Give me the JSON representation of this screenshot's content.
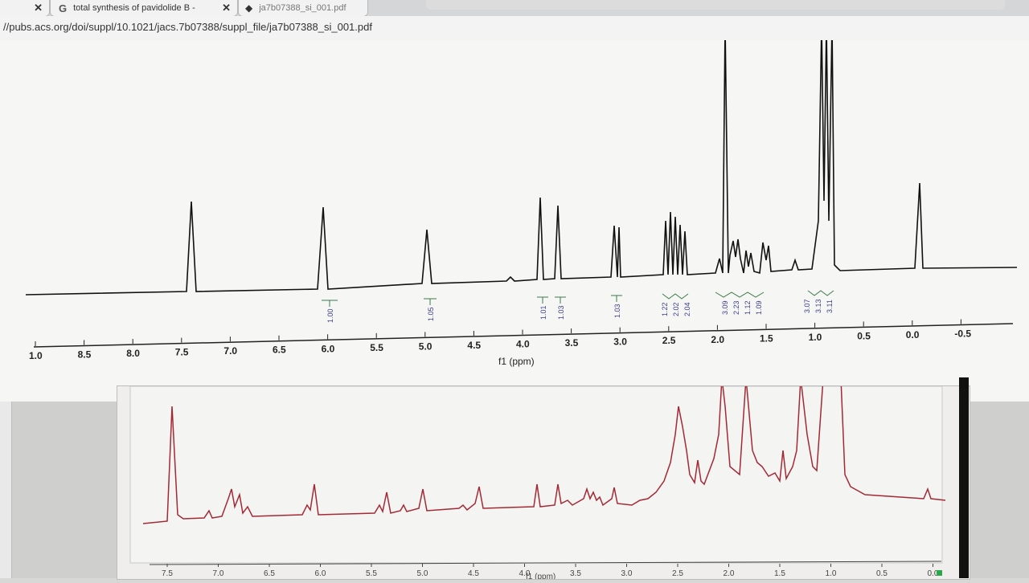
{
  "browser": {
    "tabs": [
      {
        "icon": "google-icon",
        "title": "total synthesis of pavidolide B -"
      },
      {
        "icon": "pdf-icon",
        "title": "ja7b07388_si_001.pdf"
      }
    ],
    "url": "//pubs.acs.org/doi/suppl/10.1021/jacs.7b07388/suppl_file/ja7b07388_si_001.pdf"
  },
  "spectrum": {
    "xlabel": "f1 (ppm)",
    "ticks": [
      "1.0",
      "8.5",
      "8.0",
      "7.5",
      "7.0",
      "6.5",
      "6.0",
      "5.5",
      "5.0",
      "4.5",
      "4.0",
      "3.5",
      "3.0",
      "2.5",
      "2.0",
      "1.5",
      "1.0",
      "0.5",
      "0.0",
      "-0.5"
    ],
    "integrals": [
      "1.00",
      "1.05",
      "1.01",
      "1.03",
      "1.03",
      "1.22",
      "2.02",
      "2.04",
      "3.09",
      "2.23",
      "1.12",
      "1.09",
      "3.07",
      "3.13",
      "3.11"
    ]
  },
  "mnova": {
    "ticks": [
      "7.5",
      "7.0",
      "6.5",
      "6.0",
      "5.5",
      "5.0",
      "4.5",
      "4.0",
      "3.5",
      "3.0",
      "2.5",
      "2.0",
      "1.5",
      "1.0",
      "0.5",
      "0.0"
    ],
    "xlabel": "f1 (ppm)"
  },
  "colors": {
    "spectrum_line": "#111111",
    "integral": "#3b3f8f",
    "mnova_line": "#a32a35"
  }
}
